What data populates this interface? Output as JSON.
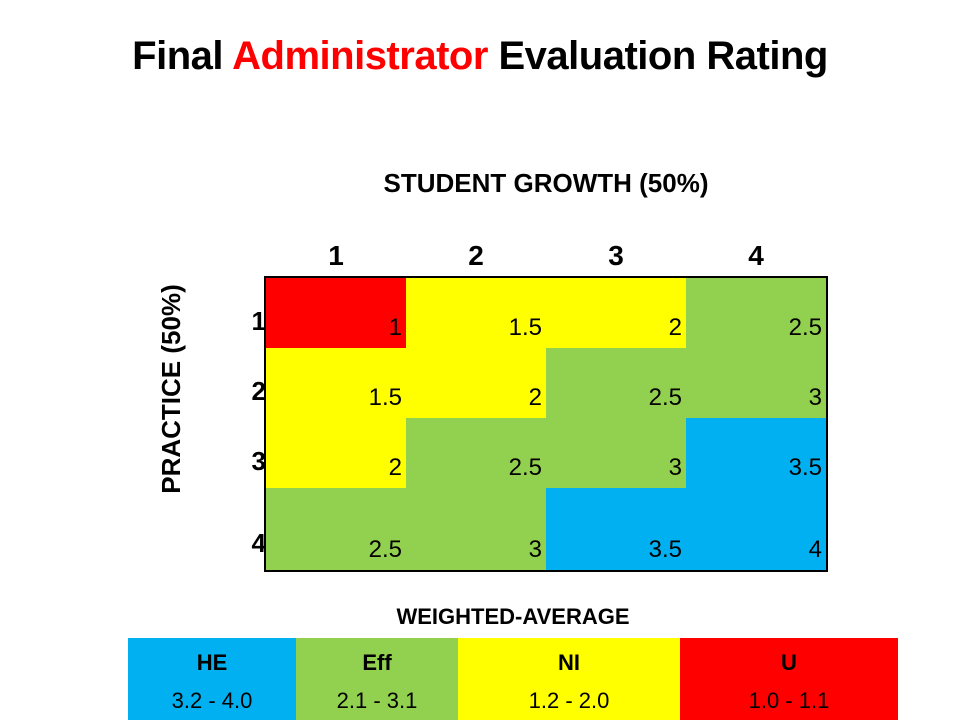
{
  "title": {
    "part1": "Final ",
    "part2": "Administrator",
    "part3": " Evaluation Rating"
  },
  "chart_data": {
    "type": "heatmap",
    "title": "Final Administrator Evaluation Rating",
    "xlabel": "STUDENT GROWTH (50%)",
    "ylabel": "PRACTICE  (50%)",
    "x_categories": [
      "1",
      "2",
      "3",
      "4"
    ],
    "y_categories": [
      "1",
      "2",
      "3",
      "4"
    ],
    "values": [
      [
        "1",
        "1.5",
        "2",
        "2.5"
      ],
      [
        "1.5",
        "2",
        "2.5",
        "3"
      ],
      [
        "2",
        "2.5",
        "3",
        "3.5"
      ],
      [
        "2.5",
        "3",
        "3.5",
        "4"
      ]
    ],
    "legend": {
      "title": "WEIGHTED-AVERAGE",
      "entries": [
        {
          "code": "HE",
          "range": "3.2 - 4.0",
          "min": 3.2,
          "max": 4.0,
          "color": "#00b0f0"
        },
        {
          "code": "Eff",
          "range": "2.1 - 3.1",
          "min": 2.1,
          "max": 3.1,
          "color": "#92d050"
        },
        {
          "code": "NI",
          "range": "1.2 - 2.0",
          "min": 1.2,
          "max": 2.0,
          "color": "#ffff00"
        },
        {
          "code": "U",
          "range": "1.0 - 1.1",
          "min": 1.0,
          "max": 1.1,
          "color": "#ff0000"
        }
      ]
    }
  }
}
